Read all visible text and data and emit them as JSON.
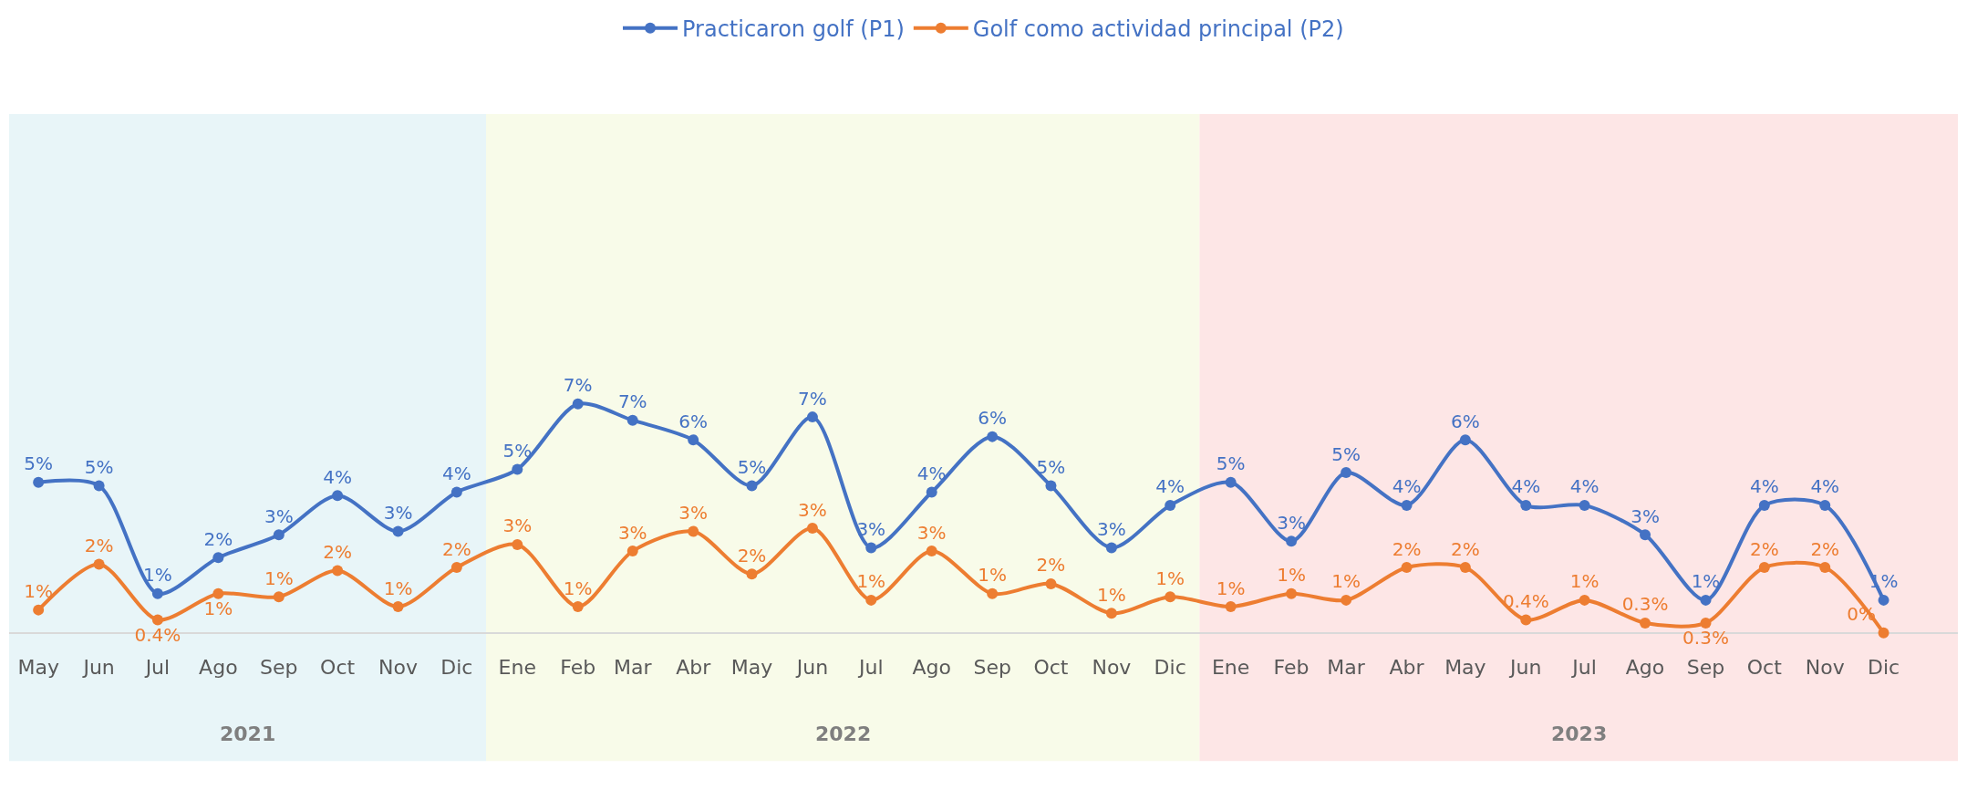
{
  "chart_data": {
    "type": "line",
    "x": [
      "2021-05",
      "2021-06",
      "2021-07",
      "2021-08",
      "2021-09",
      "2021-10",
      "2021-11",
      "2021-12",
      "2022-01",
      "2022-02",
      "2022-03",
      "2022-04",
      "2022-05",
      "2022-06",
      "2022-07",
      "2022-08",
      "2022-09",
      "2022-10",
      "2022-11",
      "2022-12",
      "2023-01",
      "2023-02",
      "2023-03",
      "2023-04",
      "2023-05",
      "2023-06",
      "2023-07",
      "2023-08",
      "2023-09",
      "2023-10",
      "2023-11",
      "2023-12"
    ],
    "xlim": [
      "2021-04-16",
      "2024-01-08"
    ],
    "xticks": [
      {
        "value": "2021-05",
        "label": "May"
      },
      {
        "value": "2021-06",
        "label": "Jun"
      },
      {
        "value": "2021-07",
        "label": "Jul"
      },
      {
        "value": "2021-08",
        "label": "Ago"
      },
      {
        "value": "2021-09",
        "label": "Sep"
      },
      {
        "value": "2021-10",
        "label": "Oct"
      },
      {
        "value": "2021-11",
        "label": "Nov"
      },
      {
        "value": "2021-12",
        "label": "Dic"
      },
      {
        "value": "2022-01",
        "label": "Ene"
      },
      {
        "value": "2022-02",
        "label": "Feb"
      },
      {
        "value": "2022-03",
        "label": "Mar"
      },
      {
        "value": "2022-04",
        "label": "Abr"
      },
      {
        "value": "2022-05",
        "label": "May"
      },
      {
        "value": "2022-06",
        "label": "Jun"
      },
      {
        "value": "2022-07",
        "label": "Jul"
      },
      {
        "value": "2022-08",
        "label": "Ago"
      },
      {
        "value": "2022-09",
        "label": "Sep"
      },
      {
        "value": "2022-10",
        "label": "Oct"
      },
      {
        "value": "2022-11",
        "label": "Nov"
      },
      {
        "value": "2022-12",
        "label": "Dic"
      },
      {
        "value": "2023-01",
        "label": "Ene"
      },
      {
        "value": "2023-02",
        "label": "Feb"
      },
      {
        "value": "2023-03",
        "label": "Mar"
      },
      {
        "value": "2023-04",
        "label": "Abr"
      },
      {
        "value": "2023-05",
        "label": "May"
      },
      {
        "value": "2023-06",
        "label": "Jun"
      },
      {
        "value": "2023-07",
        "label": "Jul"
      },
      {
        "value": "2023-08",
        "label": "Ago"
      },
      {
        "value": "2023-09",
        "label": "Sep"
      },
      {
        "value": "2023-10",
        "label": "Oct"
      },
      {
        "value": "2023-11",
        "label": "Nov"
      },
      {
        "value": "2023-12",
        "label": "Dic"
      }
    ],
    "tick_labels": "x",
    "series": [
      {
        "name": "Practicaron golf (P1)",
        "color": "#4472c4",
        "values": [
          4.6,
          4.5,
          1.2,
          2.3,
          3.0,
          4.2,
          3.1,
          4.3,
          5.0,
          7.0,
          6.5,
          5.9,
          4.5,
          6.6,
          2.6,
          4.3,
          6.0,
          4.5,
          2.6,
          3.9,
          4.6,
          2.8,
          4.9,
          3.9,
          5.9,
          3.9,
          3.9,
          3.0,
          1.0,
          3.9,
          3.9,
          1.0
        ],
        "value_labels": [
          "5%",
          "5%",
          "1%",
          "2%",
          "3%",
          "4%",
          "3%",
          "4%",
          "5%",
          "7%",
          "7%",
          "6%",
          "5%",
          "7%",
          "3%",
          "4%",
          "6%",
          "5%",
          "3%",
          "4%",
          "5%",
          "3%",
          "5%",
          "4%",
          "6%",
          "4%",
          "4%",
          "3%",
          "1%",
          "4%",
          "4%",
          "1%"
        ]
      },
      {
        "name": "Golf como actividad principal (P2)",
        "color": "#ed7d31",
        "values": [
          0.7,
          2.1,
          0.4,
          1.2,
          1.1,
          1.9,
          0.8,
          2.0,
          2.7,
          0.8,
          2.5,
          3.1,
          1.8,
          3.2,
          1.0,
          2.5,
          1.2,
          1.5,
          0.6,
          1.1,
          0.8,
          1.2,
          1.0,
          2.0,
          2.0,
          0.4,
          1.0,
          0.3,
          0.3,
          2.0,
          2.0,
          0.0
        ],
        "value_labels": [
          "1%",
          "2%",
          "0.4%",
          "1%",
          "1%",
          "2%",
          "1%",
          "2%",
          "3%",
          "1%",
          "3%",
          "3%",
          "2%",
          "3%",
          "1%",
          "3%",
          "1%",
          "2%",
          "1%",
          "1%",
          "1%",
          "1%",
          "1%",
          "2%",
          "2%",
          "0.4%",
          "1%",
          "0.3%",
          "0.3%",
          "2%",
          "2%",
          "0%"
        ]
      }
    ],
    "bands": [
      {
        "axis": "x",
        "from": "2021-04-16",
        "to": "2021-12-16",
        "label": "2021",
        "color": "#e8f5f8"
      },
      {
        "axis": "x",
        "from": "2021-12-16",
        "to": "2022-12-16",
        "label": "2022",
        "color": "#f8fbe9"
      },
      {
        "axis": "x",
        "from": "2022-12-16",
        "to": "2024-01-08",
        "label": "2023",
        "color": "#fde6e6"
      }
    ],
    "grid": false,
    "legend": "top",
    "marker": "circle",
    "line_style": "solid"
  }
}
